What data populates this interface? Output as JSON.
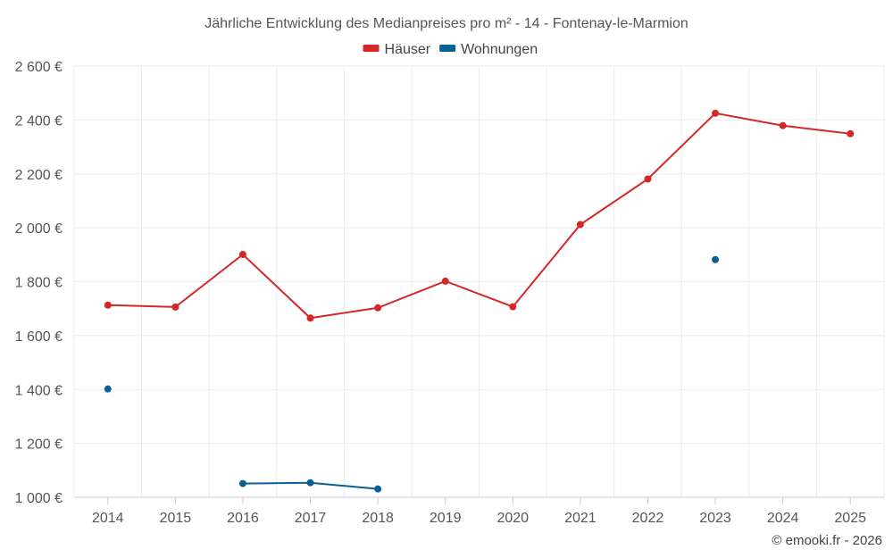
{
  "chart_data": {
    "type": "line",
    "title": "Jährliche Entwicklung des Medianpreises pro m² - 14 - Fontenay-le-Marmion",
    "categories": [
      "2014",
      "2015",
      "2016",
      "2017",
      "2018",
      "2019",
      "2020",
      "2021",
      "2022",
      "2023",
      "2024",
      "2025"
    ],
    "ylim": [
      1000,
      2600
    ],
    "yticks": [
      1000,
      1200,
      1400,
      1600,
      1800,
      2000,
      2200,
      2400,
      2600
    ],
    "ytick_labels": [
      "1 000 €",
      "1 200 €",
      "1 400 €",
      "1 600 €",
      "1 800 €",
      "2 000 €",
      "2 200 €",
      "2 400 €",
      "2 600 €"
    ],
    "legend_position": "top-center",
    "grid": true,
    "series": [
      {
        "name": "Häuser",
        "color": "#d62728",
        "values": [
          1713,
          1706,
          1901,
          1665,
          1703,
          1802,
          1707,
          2012,
          2181,
          2425,
          2379,
          2349
        ]
      },
      {
        "name": "Wohnungen",
        "color": "#0a5f96",
        "values": [
          1402,
          null,
          1051,
          1054,
          1031,
          null,
          null,
          null,
          null,
          1882,
          null,
          null
        ]
      }
    ],
    "credit": "© emooki.fr - 2026"
  }
}
